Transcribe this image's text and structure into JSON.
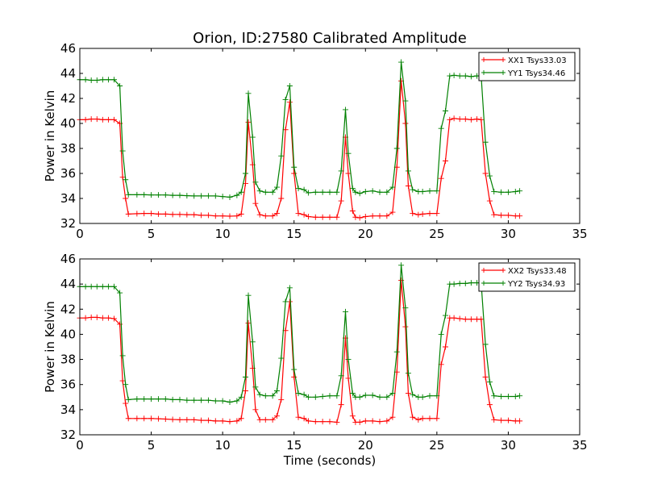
{
  "chart_data": [
    {
      "type": "line",
      "title": "Orion, ID:27580 Calibrated Amplitude",
      "xlabel": "",
      "ylabel": "Power in Kelvin",
      "xlim": [
        0,
        35
      ],
      "ylim": [
        32,
        46
      ],
      "xticks": [
        "0",
        "5",
        "10",
        "15",
        "20",
        "25",
        "30",
        "35"
      ],
      "yticks": [
        "32",
        "34",
        "36",
        "38",
        "40",
        "42",
        "44",
        "46"
      ],
      "grid": false,
      "legend_position": "top-right",
      "x": [
        0.0,
        0.4,
        0.8,
        1.2,
        1.6,
        2.0,
        2.4,
        2.8,
        3.0,
        3.2,
        3.4,
        4.0,
        4.5,
        5.0,
        5.5,
        6.0,
        6.5,
        7.0,
        7.5,
        8.0,
        8.5,
        9.0,
        9.5,
        10.0,
        10.5,
        11.0,
        11.3,
        11.6,
        11.8,
        12.1,
        12.3,
        12.6,
        13.0,
        13.5,
        13.8,
        14.1,
        14.4,
        14.7,
        15.0,
        15.3,
        15.7,
        16.0,
        16.5,
        17.0,
        17.5,
        18.0,
        18.3,
        18.6,
        18.8,
        19.1,
        19.3,
        19.6,
        20.0,
        20.5,
        21.0,
        21.5,
        21.9,
        22.2,
        22.5,
        22.8,
        23.0,
        23.3,
        23.7,
        24.0,
        24.5,
        25.0,
        25.3,
        25.6,
        25.9,
        26.2,
        26.6,
        27.0,
        27.4,
        27.8,
        28.1,
        28.4,
        28.7,
        29.0,
        29.5,
        30.0,
        30.5,
        30.8
      ],
      "series": [
        {
          "name": "XX1 Tsys33.03",
          "color": "#ff0000",
          "values": [
            40.3,
            40.3,
            40.35,
            40.35,
            40.3,
            40.3,
            40.3,
            40.0,
            35.7,
            34.0,
            32.75,
            32.78,
            32.8,
            32.8,
            32.75,
            32.75,
            32.72,
            32.72,
            32.7,
            32.7,
            32.65,
            32.65,
            32.6,
            32.6,
            32.58,
            32.6,
            32.75,
            35.2,
            40.1,
            36.7,
            33.6,
            32.7,
            32.6,
            32.6,
            32.8,
            34.0,
            39.5,
            41.7,
            36.0,
            32.8,
            32.7,
            32.55,
            32.5,
            32.5,
            32.5,
            32.5,
            33.8,
            38.9,
            36.0,
            33.0,
            32.5,
            32.45,
            32.55,
            32.6,
            32.6,
            32.6,
            32.9,
            36.5,
            43.4,
            40.0,
            35.0,
            32.8,
            32.7,
            32.75,
            32.8,
            32.8,
            35.6,
            37.0,
            40.3,
            40.4,
            40.35,
            40.35,
            40.3,
            40.35,
            40.3,
            36.0,
            33.8,
            32.7,
            32.65,
            32.65,
            32.6,
            32.6
          ]
        },
        {
          "name": "YY1 Tsys34.46",
          "color": "#008000",
          "values": [
            43.5,
            43.5,
            43.45,
            43.45,
            43.5,
            43.5,
            43.5,
            43.0,
            37.8,
            35.5,
            34.3,
            34.3,
            34.3,
            34.28,
            34.28,
            34.28,
            34.25,
            34.25,
            34.22,
            34.2,
            34.2,
            34.2,
            34.2,
            34.15,
            34.1,
            34.25,
            34.5,
            36.0,
            42.4,
            38.9,
            35.3,
            34.6,
            34.5,
            34.5,
            34.9,
            37.4,
            41.9,
            43.0,
            36.5,
            34.8,
            34.7,
            34.45,
            34.5,
            34.5,
            34.5,
            34.5,
            36.2,
            41.1,
            37.6,
            34.8,
            34.5,
            34.4,
            34.55,
            34.6,
            34.5,
            34.5,
            34.9,
            38.0,
            44.9,
            41.8,
            36.2,
            34.7,
            34.55,
            34.55,
            34.6,
            34.6,
            39.6,
            41.0,
            43.8,
            43.85,
            43.8,
            43.8,
            43.75,
            43.8,
            43.8,
            38.5,
            35.8,
            34.55,
            34.5,
            34.5,
            34.55,
            34.6
          ]
        }
      ]
    },
    {
      "type": "line",
      "title": "",
      "xlabel": "Time (seconds)",
      "ylabel": "Power in Kelvin",
      "xlim": [
        0,
        35
      ],
      "ylim": [
        32,
        46
      ],
      "xticks": [
        "0",
        "5",
        "10",
        "15",
        "20",
        "25",
        "30",
        "35"
      ],
      "yticks": [
        "32",
        "34",
        "36",
        "38",
        "40",
        "42",
        "44",
        "46"
      ],
      "grid": false,
      "legend_position": "top-right",
      "x": [
        0.0,
        0.4,
        0.8,
        1.2,
        1.6,
        2.0,
        2.4,
        2.8,
        3.0,
        3.2,
        3.4,
        4.0,
        4.5,
        5.0,
        5.5,
        6.0,
        6.5,
        7.0,
        7.5,
        8.0,
        8.5,
        9.0,
        9.5,
        10.0,
        10.5,
        11.0,
        11.3,
        11.6,
        11.8,
        12.1,
        12.3,
        12.6,
        13.0,
        13.5,
        13.8,
        14.1,
        14.4,
        14.7,
        15.0,
        15.3,
        15.7,
        16.0,
        16.5,
        17.0,
        17.5,
        18.0,
        18.3,
        18.6,
        18.8,
        19.1,
        19.3,
        19.6,
        20.0,
        20.5,
        21.0,
        21.5,
        21.9,
        22.2,
        22.5,
        22.8,
        23.0,
        23.3,
        23.7,
        24.0,
        24.5,
        25.0,
        25.3,
        25.6,
        25.9,
        26.2,
        26.6,
        27.0,
        27.4,
        27.8,
        28.1,
        28.4,
        28.7,
        29.0,
        29.5,
        30.0,
        30.5,
        30.8
      ],
      "series": [
        {
          "name": "XX2 Tsys33.48",
          "color": "#ff0000",
          "values": [
            41.3,
            41.3,
            41.35,
            41.35,
            41.3,
            41.3,
            41.25,
            40.8,
            36.3,
            34.5,
            33.3,
            33.3,
            33.3,
            33.3,
            33.28,
            33.25,
            33.22,
            33.2,
            33.2,
            33.2,
            33.15,
            33.15,
            33.1,
            33.1,
            33.05,
            33.1,
            33.3,
            35.5,
            40.9,
            37.3,
            34.0,
            33.2,
            33.2,
            33.2,
            33.5,
            34.8,
            40.3,
            42.6,
            36.6,
            33.4,
            33.3,
            33.1,
            33.05,
            33.05,
            33.05,
            33.0,
            34.4,
            39.7,
            36.5,
            33.5,
            33.0,
            33.0,
            33.1,
            33.1,
            33.05,
            33.1,
            33.4,
            37.0,
            44.3,
            40.6,
            35.3,
            33.4,
            33.2,
            33.3,
            33.3,
            33.3,
            37.6,
            39.0,
            41.3,
            41.3,
            41.25,
            41.2,
            41.2,
            41.2,
            41.2,
            36.6,
            34.4,
            33.2,
            33.15,
            33.15,
            33.1,
            33.1
          ]
        },
        {
          "name": "YY2 Tsys34.93",
          "color": "#008000",
          "values": [
            43.8,
            43.8,
            43.8,
            43.8,
            43.8,
            43.8,
            43.8,
            43.3,
            38.3,
            36.0,
            34.8,
            34.85,
            34.85,
            34.85,
            34.85,
            34.85,
            34.8,
            34.8,
            34.75,
            34.75,
            34.75,
            34.75,
            34.7,
            34.7,
            34.6,
            34.7,
            35.0,
            36.6,
            43.1,
            39.4,
            35.8,
            35.2,
            35.1,
            35.1,
            35.5,
            38.1,
            42.6,
            43.7,
            37.2,
            35.3,
            35.2,
            35.0,
            35.0,
            35.05,
            35.1,
            35.1,
            36.7,
            41.8,
            38.0,
            35.3,
            35.0,
            35.0,
            35.15,
            35.15,
            35.0,
            35.0,
            35.3,
            38.6,
            45.5,
            42.1,
            36.9,
            35.2,
            35.0,
            35.0,
            35.1,
            35.1,
            40.0,
            41.5,
            44.0,
            44.0,
            44.05,
            44.05,
            44.1,
            44.1,
            44.1,
            39.2,
            36.2,
            35.1,
            35.05,
            35.05,
            35.05,
            35.1
          ]
        }
      ]
    }
  ]
}
